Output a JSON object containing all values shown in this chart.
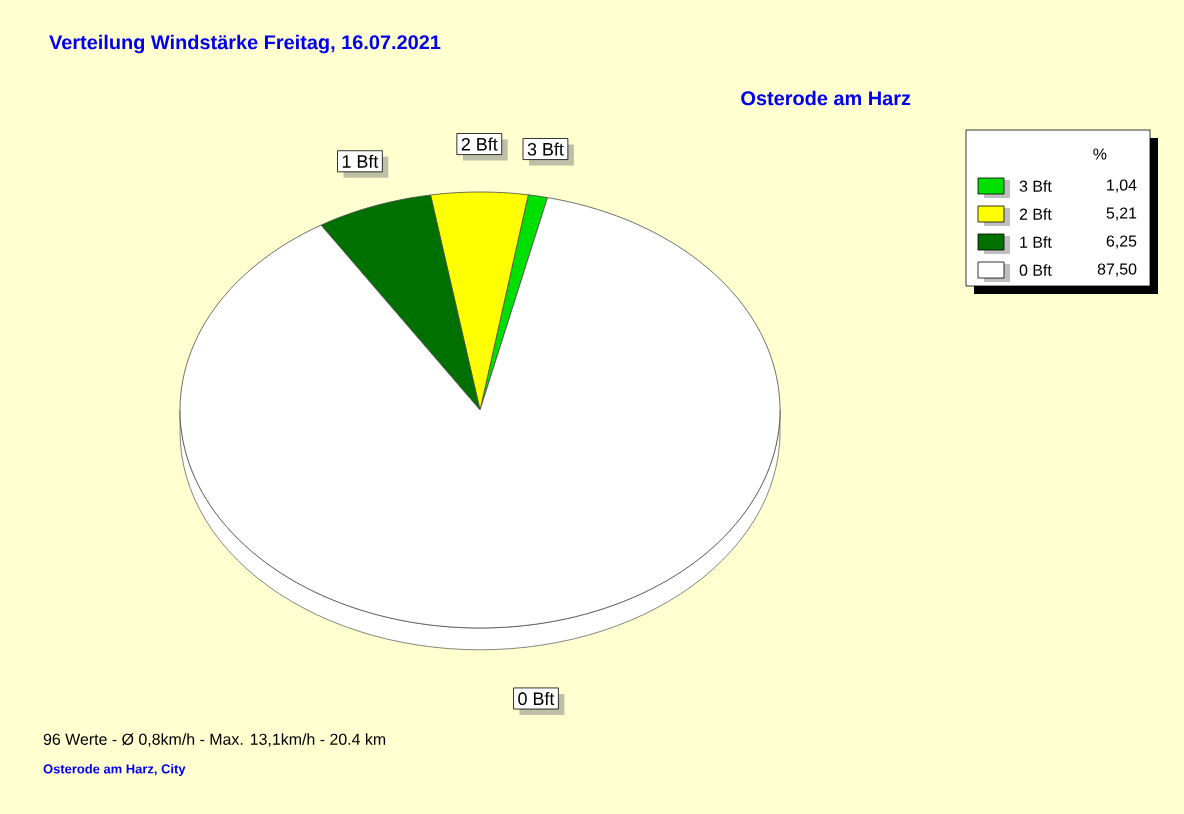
{
  "chart_data": {
    "type": "pie",
    "title": "Verteilung Windstärke  Freitag, 16.07.2021",
    "subtitle": "Osterode am Harz",
    "categories": [
      "3 Bft",
      "2 Bft",
      "1 Bft",
      "0 Bft"
    ],
    "values": [
      1.04,
      5.21,
      6.25,
      87.5
    ],
    "value_labels": [
      "1,04",
      "5,21",
      "6,25",
      "87,50"
    ],
    "colors": [
      "#00e000",
      "#ffff00",
      "#007000",
      "#ffffff"
    ],
    "legend": "top right",
    "legend_title": "%",
    "annotations": [
      "96 Werte   -   Ø 0,8km/h  -  Max. 13,1km/h   -   20.4 km",
      "Osterode am Harz, City"
    ]
  }
}
